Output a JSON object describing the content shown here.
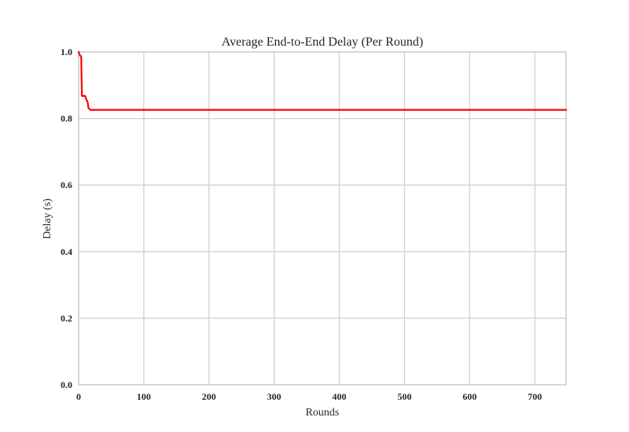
{
  "chart_data": {
    "type": "line",
    "title": "Average End-to-End Delay (Per Round)",
    "xlabel": "Rounds",
    "ylabel": "Delay (s)",
    "xlim": [
      0,
      748
    ],
    "ylim": [
      0.0,
      1.0
    ],
    "xticks": [
      0,
      100,
      200,
      300,
      400,
      500,
      600,
      700
    ],
    "xtick_labels": [
      "0",
      "100",
      "200",
      "300",
      "400",
      "500",
      "600",
      "700"
    ],
    "yticks": [
      0.0,
      0.2,
      0.4,
      0.6,
      0.8,
      1.0
    ],
    "ytick_labels": [
      "0.0",
      "0.2",
      "0.4",
      "0.6",
      "0.8",
      "1.0"
    ],
    "grid": true,
    "colors": {
      "line": "#ff0000"
    },
    "series": [
      {
        "x": [
          0,
          2,
          4,
          5,
          10,
          11,
          14,
          15,
          17,
          18,
          100,
          300,
          500,
          748
        ],
        "y": [
          1.0,
          0.99,
          0.985,
          0.868,
          0.868,
          0.862,
          0.848,
          0.832,
          0.828,
          0.826,
          0.826,
          0.826,
          0.826,
          0.826
        ]
      }
    ]
  }
}
